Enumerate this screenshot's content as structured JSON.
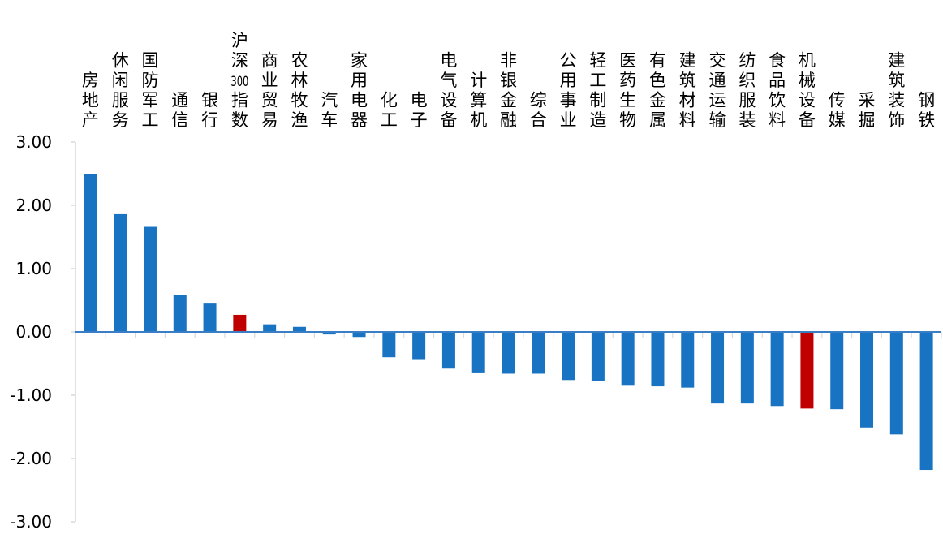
{
  "colors": {
    "default_bar": "#1873c3",
    "highlight_bar": "#c00000",
    "axis": "#d9d9d9",
    "zero_line": "#3a7fc6"
  },
  "chart_data": {
    "type": "bar",
    "title": "",
    "xlabel": "",
    "ylabel": "",
    "ylim": [
      -3.0,
      3.0
    ],
    "yticks": [
      "3.00",
      "2.00",
      "1.00",
      "0.00",
      "-1.00",
      "-2.00",
      "-3.00"
    ],
    "grid": false,
    "legend": "none",
    "categories": [
      "房地产",
      "休闲服务",
      "国防军工",
      "通信",
      "银行",
      "沪深300指数",
      "商业贸易",
      "农林牧渔",
      "汽车",
      "家用电器",
      "化工",
      "电子",
      "电气设备",
      "计算机",
      "非银金融",
      "综合",
      "公用事业",
      "轻工制造",
      "医药生物",
      "有色金属",
      "建筑材料",
      "交通运输",
      "纺织服装",
      "食品饮料",
      "机械设备",
      "传媒",
      "采掘",
      "建筑装饰",
      "钢铁"
    ],
    "values": [
      2.5,
      1.86,
      1.66,
      0.58,
      0.46,
      0.27,
      0.12,
      0.08,
      -0.04,
      -0.08,
      -0.4,
      -0.43,
      -0.58,
      -0.64,
      -0.66,
      -0.66,
      -0.76,
      -0.78,
      -0.85,
      -0.86,
      -0.88,
      -1.13,
      -1.13,
      -1.17,
      -1.21,
      -1.22,
      -1.51,
      -1.62,
      -2.18
    ],
    "highlight": [
      "沪深300指数",
      "机械设备"
    ]
  }
}
